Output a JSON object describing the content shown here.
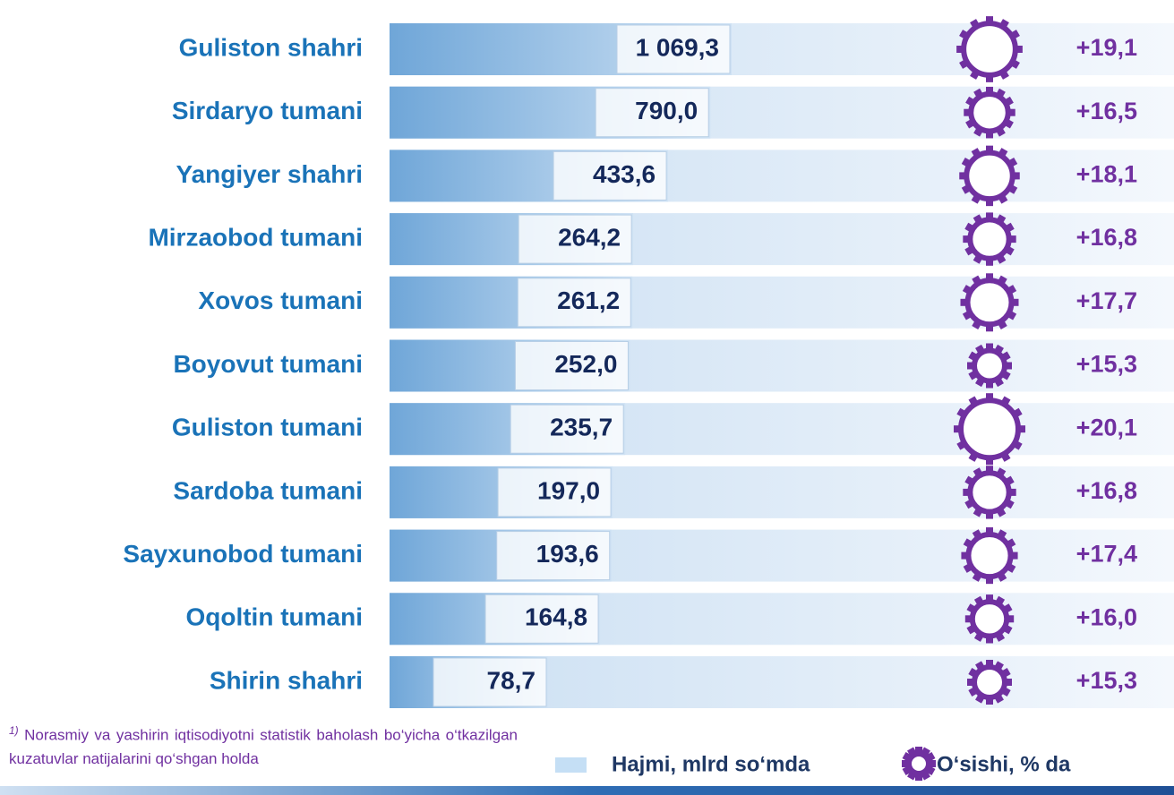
{
  "chart_data": {
    "type": "bar",
    "orientation": "horizontal",
    "categories": [
      "Guliston shahri",
      "Sirdaryo tumani",
      "Yangiyer shahri",
      "Mirzaobod tumani",
      "Xovos tumani",
      "Boyovut tumani",
      "Guliston tumani",
      "Sardoba tumani",
      "Sayxunobod tumani",
      "Oqoltin tumani",
      "Shirin shahri"
    ],
    "series": [
      {
        "name": "Hajmi, mlrd so‘mda",
        "color": "#7fb2de",
        "values": [
          1069.3,
          790.0,
          433.6,
          264.2,
          261.2,
          252.0,
          235.7,
          197.0,
          193.6,
          164.8,
          78.7
        ],
        "value_labels": [
          "1 069,3",
          "790,0",
          "433,6",
          "264,2",
          "261,2",
          "252,0",
          "235,7",
          "197,0",
          "193,6",
          "164,8",
          "78,7"
        ]
      },
      {
        "name": "O‘sishi, % da",
        "color": "#7030a0",
        "values": [
          19.1,
          16.5,
          18.1,
          16.8,
          17.7,
          15.3,
          20.1,
          16.8,
          17.4,
          16.0,
          15.3
        ],
        "value_labels": [
          "+19,1",
          "+16,5",
          "+18,1",
          "+16,8",
          "+17,7",
          "+15,3",
          "+20,1",
          "+16,8",
          "+17,4",
          "+16,0",
          "+15,3"
        ]
      }
    ],
    "footnote_marker": "1)",
    "footnote": "Norasmiy va yashirin iqtisodiyotni statistik baholash bo‘yicha o‘tkazilgan kuzatuvlar natijalarini qo‘shgan holda"
  }
}
